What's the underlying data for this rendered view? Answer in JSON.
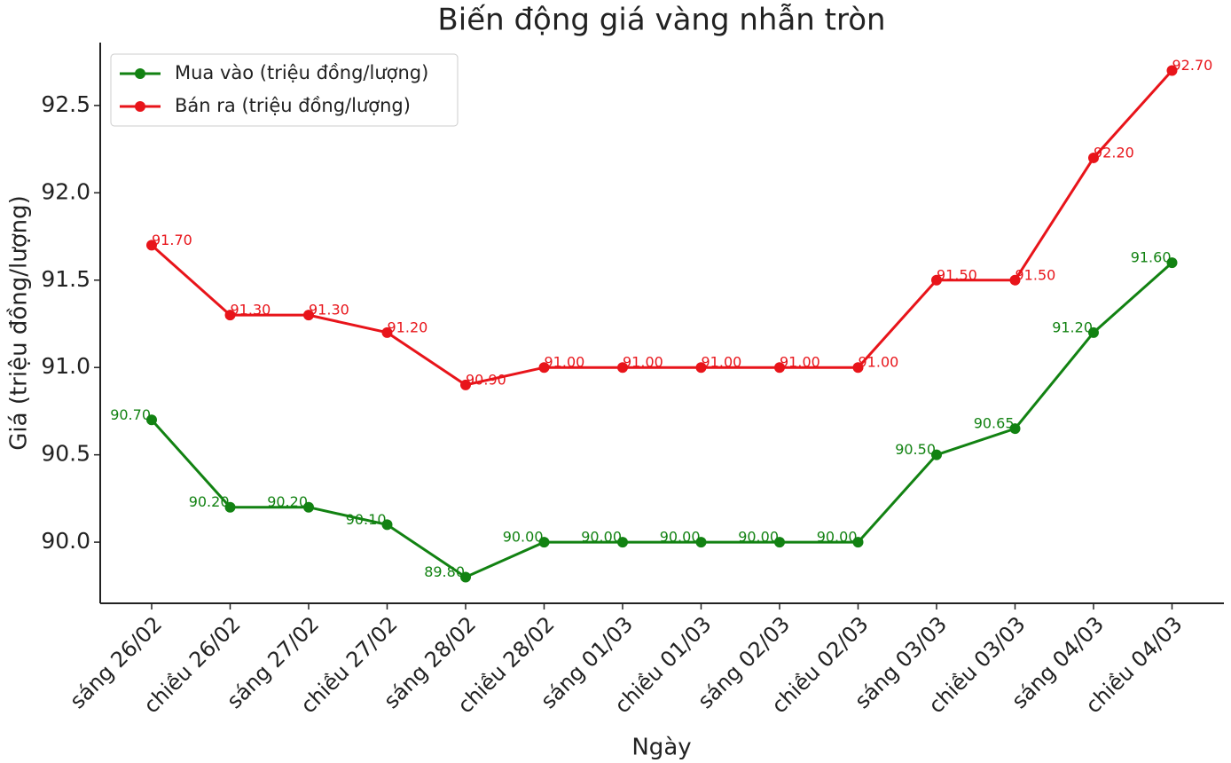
{
  "chart_data": {
    "type": "line",
    "title": "Biến động giá vàng nhẫn tròn",
    "x_label": "Ngày",
    "y_label": "Giá (triệu đồng/lượng)",
    "categories": [
      "sáng 26/02",
      "chiều 26/02",
      "sáng 27/02",
      "chiều 27/02",
      "sáng 28/02",
      "chiều 28/02",
      "sáng 01/03",
      "chiều 01/03",
      "sáng 02/03",
      "chiều 02/03",
      "sáng 03/03",
      "chiều 03/03",
      "sáng 04/03",
      "chiều 04/03"
    ],
    "series": [
      {
        "name": "Mua vào (triệu đồng/lượng)",
        "color": "#128212",
        "values": [
          90.7,
          90.2,
          90.2,
          90.1,
          89.8,
          90.0,
          90.0,
          90.0,
          90.0,
          90.0,
          90.5,
          90.65,
          91.2,
          91.6
        ],
        "value_labels": [
          "90.70",
          "90.20",
          "90.20",
          "90.10",
          "89.80",
          "90.00",
          "90.00",
          "90.00",
          "90.00",
          "90.00",
          "90.50",
          "90.65",
          "91.20",
          "91.60"
        ]
      },
      {
        "name": "Bán ra (triệu đồng/lượng)",
        "color": "#e8141a",
        "values": [
          91.7,
          91.3,
          91.3,
          91.2,
          90.9,
          91.0,
          91.0,
          91.0,
          91.0,
          91.0,
          91.5,
          91.5,
          92.2,
          92.7
        ],
        "value_labels": [
          "91.70",
          "91.30",
          "91.30",
          "91.20",
          "90.90",
          "91.00",
          "91.00",
          "91.00",
          "91.00",
          "91.00",
          "91.50",
          "91.50",
          "92.20",
          "92.70"
        ]
      }
    ],
    "ylim": [
      89.65,
      92.86
    ],
    "yticks": [
      {
        "value": 90,
        "label": "90.0"
      },
      90.5,
      {
        "value": 91,
        "label": "91.0"
      },
      91.5,
      {
        "value": 92,
        "label": "92.0"
      },
      92.5
    ],
    "legend": "upper left"
  }
}
